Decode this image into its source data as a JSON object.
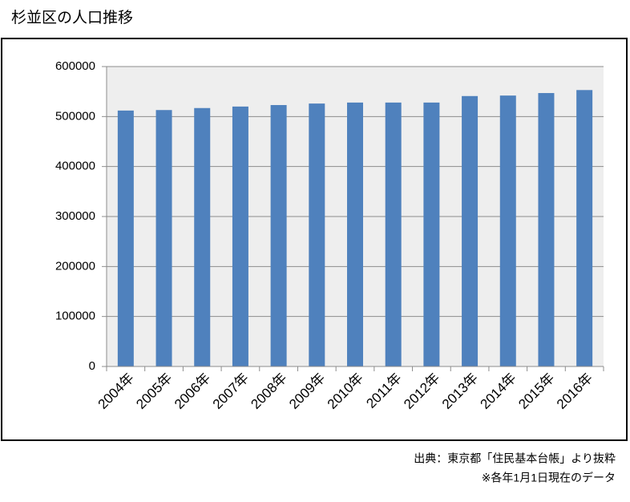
{
  "chart_data": {
    "type": "bar",
    "title": "杉並区の人口推移",
    "categories": [
      "2004年",
      "2005年",
      "2006年",
      "2007年",
      "2008年",
      "2009年",
      "2010年",
      "2011年",
      "2012年",
      "2013年",
      "2014年",
      "2015年",
      "2016年"
    ],
    "values": [
      512000,
      513000,
      517000,
      520000,
      523000,
      526000,
      528000,
      528000,
      528000,
      541000,
      542000,
      547000,
      553000
    ],
    "color": "#4f81bd",
    "ylim": [
      0,
      600000
    ],
    "yticks": [
      0,
      100000,
      200000,
      300000,
      400000,
      500000,
      600000
    ],
    "grid": true,
    "source": "出典：東京都「住民基本台帳」より抜粋",
    "note": "※各年1月1日現在のデータ"
  }
}
